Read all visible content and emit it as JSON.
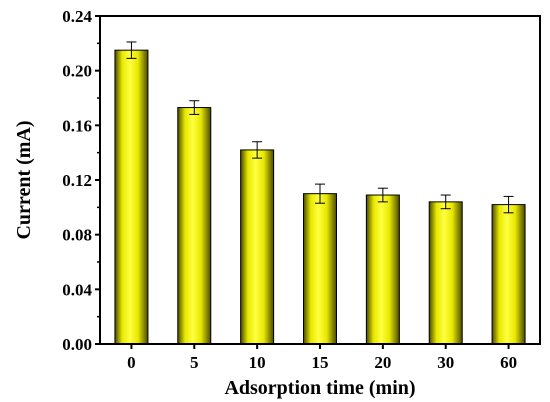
{
  "chart_data": {
    "type": "bar",
    "title": "",
    "xlabel": "Adsorption time (min)",
    "ylabel": "Current (mA)",
    "categories": [
      "0",
      "5",
      "10",
      "15",
      "20",
      "30",
      "60"
    ],
    "values": [
      0.215,
      0.173,
      0.142,
      0.11,
      0.109,
      0.104,
      0.102
    ],
    "errors": [
      0.006,
      0.005,
      0.006,
      0.007,
      0.005,
      0.005,
      0.006
    ],
    "ylim": [
      0.0,
      0.24
    ],
    "yticks": [
      "0.00",
      "0.04",
      "0.08",
      "0.12",
      "0.16",
      "0.20",
      "0.24"
    ],
    "ytick_values": [
      0.0,
      0.04,
      0.08,
      0.12,
      0.16,
      0.2,
      0.24
    ],
    "grid": false,
    "bar_color": "#e8e800",
    "bar_color_dark": "#4a4a00",
    "bar_color_light": "#ffff40"
  }
}
